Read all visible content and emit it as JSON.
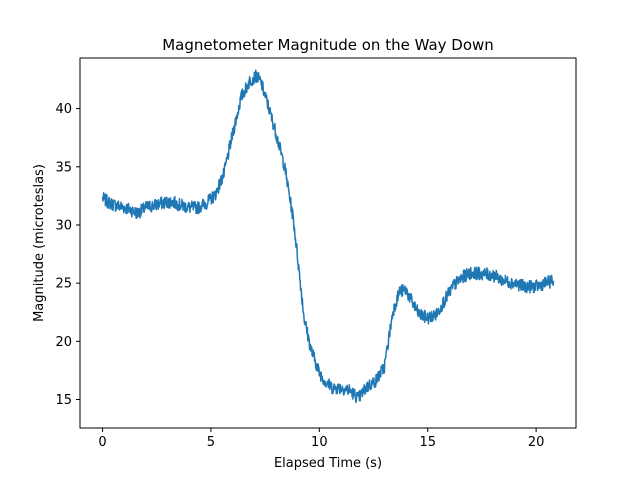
{
  "chart_data": {
    "type": "line",
    "title": "Magnetometer Magnitude on the Way Down",
    "xlabel": "Elapsed Time (s)",
    "ylabel": "Magnitude (microteslas)",
    "xlim": [
      -1.04,
      21.84
    ],
    "ylim": [
      12.55,
      44.35
    ],
    "xticks": [
      0,
      5,
      10,
      15,
      20
    ],
    "xtick_labels": [
      "0",
      "5",
      "10",
      "15",
      "20"
    ],
    "yticks": [
      15,
      20,
      25,
      30,
      35,
      40
    ],
    "ytick_labels": [
      "15",
      "20",
      "25",
      "30",
      "35",
      "40"
    ],
    "grid": false,
    "legend": "none",
    "series": [
      {
        "color": "#1f77b4",
        "x": [
          0.0,
          0.3,
          0.6,
          1.0,
          1.3,
          1.6,
          2.0,
          2.4,
          2.8,
          3.2,
          3.6,
          4.0,
          4.4,
          4.8,
          5.2,
          5.6,
          6.0,
          6.4,
          6.8,
          7.1,
          7.3,
          7.6,
          8.0,
          8.4,
          8.8,
          9.0,
          9.3,
          9.6,
          10.0,
          10.3,
          10.6,
          11.0,
          11.4,
          11.8,
          12.2,
          12.6,
          13.0,
          13.4,
          13.7,
          14.0,
          14.3,
          14.6,
          15.0,
          15.4,
          15.8,
          16.2,
          16.6,
          17.0,
          17.5,
          18.0,
          18.5,
          19.0,
          19.5,
          20.0,
          20.4,
          20.8
        ],
        "y": [
          32.3,
          31.9,
          31.7,
          31.5,
          31.3,
          31.0,
          31.5,
          31.7,
          31.9,
          32.0,
          31.7,
          31.5,
          31.5,
          31.9,
          32.6,
          34.4,
          37.8,
          41.0,
          42.4,
          42.8,
          42.3,
          40.5,
          37.9,
          35.0,
          30.5,
          27.2,
          22.0,
          19.4,
          17.3,
          16.5,
          16.0,
          16.0,
          15.8,
          15.1,
          16.1,
          16.6,
          17.8,
          22.6,
          24.3,
          24.4,
          23.3,
          22.3,
          22.0,
          22.3,
          23.6,
          24.8,
          25.5,
          25.9,
          25.8,
          25.7,
          25.2,
          25.0,
          24.7,
          24.7,
          25.0,
          25.2
        ]
      }
    ]
  }
}
